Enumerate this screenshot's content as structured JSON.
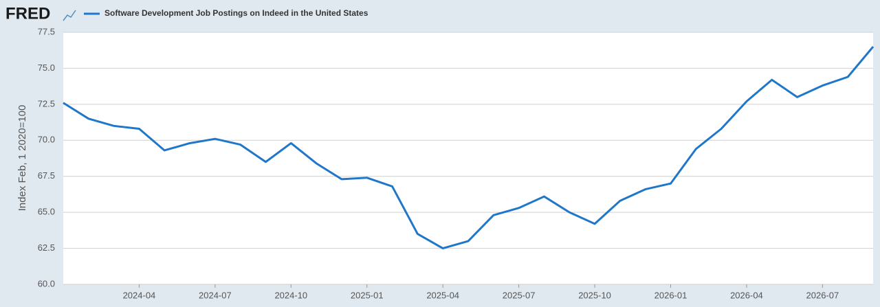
{
  "chart_data": {
    "type": "line",
    "logo": "FRED",
    "ylabel": "Index Feb, 1 2020=100",
    "x": [
      "2024-01",
      "2024-02",
      "2024-03",
      "2024-04",
      "2024-05",
      "2024-06",
      "2024-07",
      "2024-08",
      "2024-09",
      "2024-10",
      "2024-11",
      "2024-12",
      "2025-01",
      "2025-02",
      "2025-03",
      "2025-04",
      "2025-05",
      "2025-06",
      "2025-07",
      "2025-08",
      "2025-09",
      "2025-10",
      "2025-11",
      "2025-12",
      "2026-01",
      "2026-02",
      "2026-03",
      "2026-04",
      "2026-05",
      "2026-06",
      "2026-07",
      "2026-08",
      "2026-09"
    ],
    "series": [
      {
        "name": "Software Development Job Postings on Indeed in the United States",
        "color": "#1f77c9",
        "values": [
          72.6,
          71.5,
          71.0,
          70.8,
          69.3,
          69.8,
          70.1,
          69.7,
          68.5,
          69.8,
          68.4,
          67.3,
          67.4,
          66.8,
          63.5,
          62.5,
          63.0,
          64.8,
          65.3,
          66.1,
          65.0,
          64.2,
          65.8,
          66.6,
          67.0,
          69.4,
          70.8,
          72.7,
          74.2,
          73.0,
          73.8,
          74.4,
          76.5
        ]
      }
    ],
    "xlim": [
      "2024-01",
      "2026-09"
    ],
    "xticks": [
      "2024-04",
      "2024-07",
      "2024-10",
      "2025-01",
      "2025-04",
      "2025-07",
      "2025-10",
      "2026-01",
      "2026-04",
      "2026-07"
    ],
    "ylim": [
      60,
      77.5
    ],
    "yticks": [
      {
        "value": 60,
        "label": "60.0"
      },
      62.5,
      {
        "value": 65,
        "label": "65.0"
      },
      67.5,
      {
        "value": 70,
        "label": "70.0"
      },
      72.5,
      {
        "value": 75,
        "label": "75.0"
      },
      77.5
    ],
    "grid": true
  }
}
